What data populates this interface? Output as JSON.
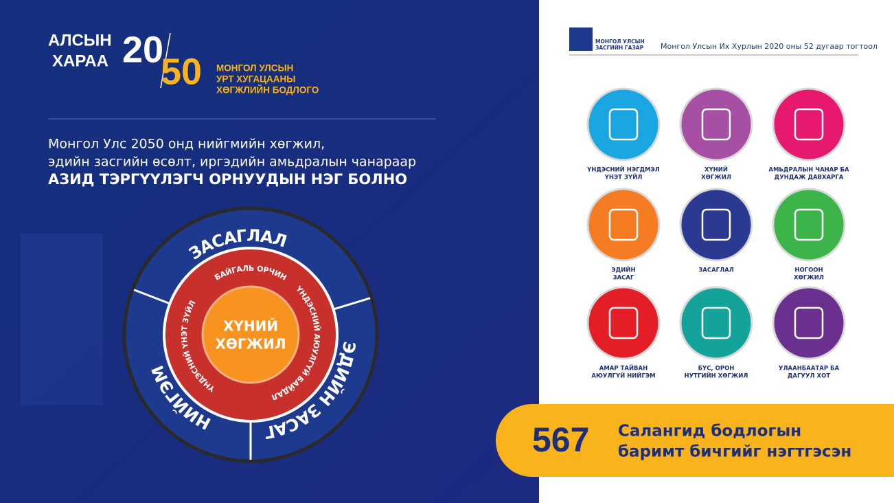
{
  "logo": {
    "line1": "АЛСЫН",
    "line2": "ХАРАА",
    "num1": "20",
    "num2": "50",
    "subtitle": [
      "МОНГОЛ УЛСЫН",
      "УРТ ХУГАЦААНЫ",
      "ХӨГЖЛИЙН БОДЛОГО"
    ]
  },
  "vision": {
    "lines": [
      "Монгол Улс 2050 онд нийгмийн хөгжил,",
      "эдийн засгийн өсөлт, иргэдийн амьдралын чанараар"
    ],
    "emphasis": "АЗИД ТЭРГҮҮЛЭГЧ ОРНУУДЫН НЭГ БОЛНО"
  },
  "wheel": {
    "center": [
      "ХҮНИЙ",
      "ХӨГЖИЛ"
    ],
    "inner": [
      "БАЙГАЛЬ ОРЧИН",
      "ҮНДЭСНИЙ АЮУЛГҮЙ БАЙДАЛ",
      "ҮНДЭСНИЙ ҮНЭТ ЗҮЙЛ"
    ],
    "outer": [
      "ЗАСАГЛАЛ",
      "ЭДИЙН ЗАСАГ",
      "НИЙГЭМ"
    ]
  },
  "header": {
    "org": [
      "МОНГОЛ УЛСЫН",
      "ЗАСГИЙН ГАЗАР"
    ],
    "resolution": "Монгол Улсын Их Хурлын 2020 оны 52 дугаар тогтоол"
  },
  "goals": [
    {
      "label": [
        "ҮНДЭСНИЙ НЭГДМЭЛ",
        "ҮНЭТ ЗҮЙЛ"
      ],
      "color": "#1aa6e0"
    },
    {
      "label": [
        "ХҮНИЙ",
        "ХӨГЖИЛ"
      ],
      "color": "#a64fa3"
    },
    {
      "label": [
        "АМЬДРАЛЫН ЧАНАР БА",
        "ДУНДАЖ ДАВХАРГА"
      ],
      "color": "#e6196e"
    },
    {
      "label": [
        "ЭДИЙН",
        "ЗАСАГ"
      ],
      "color": "#f57c22"
    },
    {
      "label": [
        "ЗАСАГЛАЛ"
      ],
      "color": "#2b3990"
    },
    {
      "label": [
        "НОГООН",
        "ХӨГЖИЛ"
      ],
      "color": "#3cb44a"
    },
    {
      "label": [
        "АМАР ТАЙВАН",
        "АЮУЛГҮЙ НИЙГЭМ"
      ],
      "color": "#e41e26"
    },
    {
      "label": [
        "БҮС, ОРОН",
        "НУТГИЙН ХӨГЖИЛ"
      ],
      "color": "#14a39a"
    },
    {
      "label": [
        "УЛААНБААТАР БА",
        "ДАГУУЛ ХОТ"
      ],
      "color": "#6b2f8f"
    }
  ],
  "footer": {
    "number": 567,
    "lines": [
      "Салангид бодлогын",
      "баримт бичгийг нэгтгэсэн"
    ]
  }
}
